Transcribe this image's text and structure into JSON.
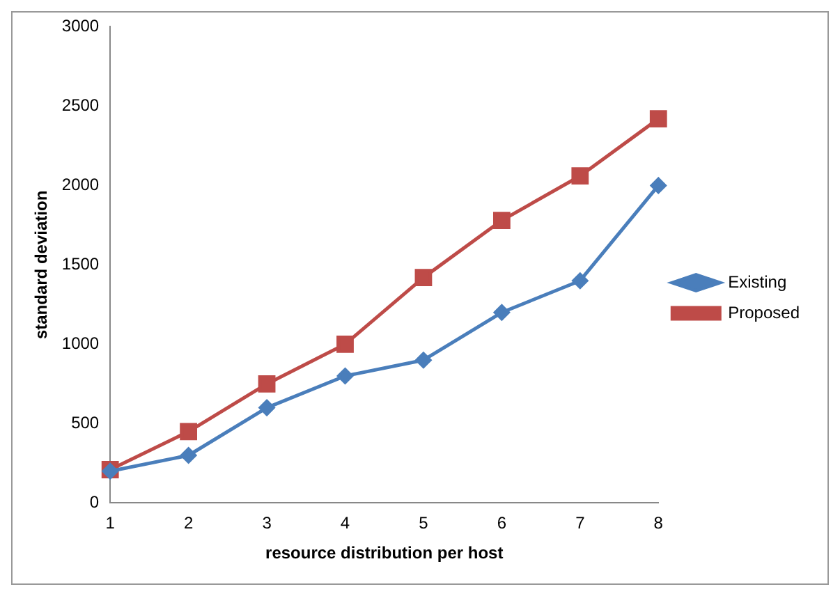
{
  "chart_data": {
    "type": "line",
    "xlabel": "resource distribution per host",
    "ylabel": "standard deviation",
    "categories": [
      "1",
      "2",
      "3",
      "4",
      "5",
      "6",
      "7",
      "8"
    ],
    "series": [
      {
        "name": "Existing",
        "color": "#4a7ebb",
        "marker": "diamond",
        "values": [
          200,
          300,
          600,
          800,
          900,
          1200,
          1400,
          2000
        ]
      },
      {
        "name": "Proposed",
        "color": "#be4b48",
        "marker": "square",
        "values": [
          210,
          450,
          750,
          1000,
          1420,
          1780,
          2060,
          2420
        ]
      }
    ],
    "ylim": [
      0,
      3000
    ],
    "yticks": [
      0,
      500,
      1000,
      1500,
      2000,
      2500,
      3000
    ],
    "grid": false,
    "legend": "right"
  }
}
